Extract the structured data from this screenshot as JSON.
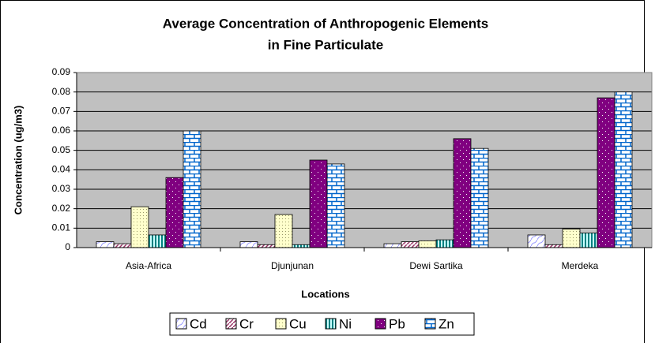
{
  "chart_data": {
    "type": "bar",
    "title": [
      "Average Concentration of Anthropogenic Elements",
      "in Fine Particulate"
    ],
    "x_label": "Locations",
    "y_label": "Concentration (ug/m3)",
    "categories": [
      "Asia-Africa",
      "Djunjunan",
      "Dewi Sartika",
      "Merdeka"
    ],
    "series": [
      {
        "name": "Cd",
        "color": "#9999ff",
        "values": [
          0.003,
          0.003,
          0.002,
          0.0065
        ]
      },
      {
        "name": "Cr",
        "color": "#993366",
        "values": [
          0.002,
          0.0015,
          0.003,
          0.0015
        ]
      },
      {
        "name": "Cu",
        "color": "#ffffcc",
        "values": [
          0.021,
          0.017,
          0.0035,
          0.0095
        ]
      },
      {
        "name": "Ni",
        "color": "#008080",
        "values": [
          0.0065,
          0.0015,
          0.004,
          0.0075
        ]
      },
      {
        "name": "Pb",
        "color": "#800080",
        "values": [
          0.036,
          0.045,
          0.056,
          0.077
        ]
      },
      {
        "name": "Zn",
        "color": "#0066cc",
        "values": [
          0.06,
          0.043,
          0.051,
          0.08
        ]
      }
    ],
    "ylim": [
      0,
      0.09
    ],
    "yticks": [
      0,
      0.01,
      0.02,
      0.03,
      0.04,
      0.05,
      0.06,
      0.07,
      0.08,
      0.09
    ],
    "grid": true,
    "legend": "bottom"
  }
}
